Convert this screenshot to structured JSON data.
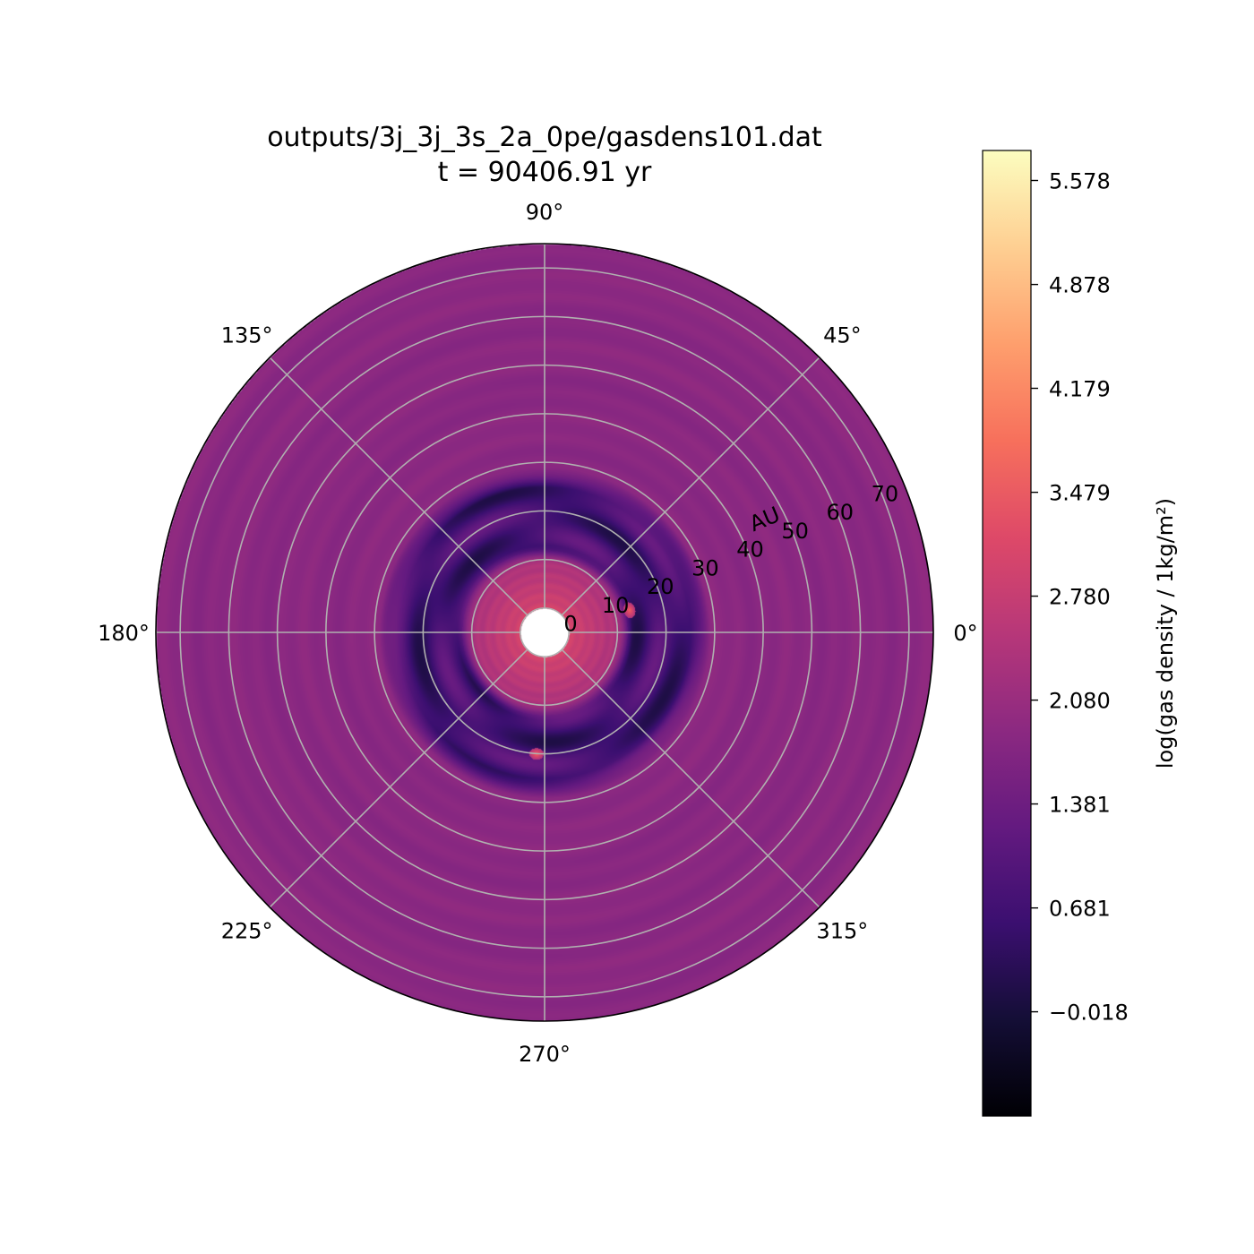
{
  "chart_data": {
    "type": "heatmap",
    "projection": "polar",
    "title_line1": "outputs/3j_3j_3s_2a_0pe/gasdens101.dat",
    "title_line2": "t = 90406.91 yr",
    "theta_ticks": [
      "0°",
      "45°",
      "90°",
      "135°",
      "180°",
      "225°",
      "270°",
      "315°"
    ],
    "theta_tick_values_deg": [
      0,
      45,
      90,
      135,
      180,
      225,
      270,
      315
    ],
    "r_label": "AU",
    "r_ticks": [
      "0",
      "10",
      "20",
      "30",
      "40",
      "50",
      "60",
      "70"
    ],
    "r_tick_values": [
      0,
      10,
      20,
      30,
      40,
      50,
      60,
      70
    ],
    "r_range": [
      -5,
      75
    ],
    "grid": true,
    "colormap": "magma",
    "colorbar": {
      "label": "log(gas density / 1kg/m²)",
      "ticks": [
        "−0.018",
        "0.681",
        "1.381",
        "2.080",
        "2.780",
        "3.479",
        "4.179",
        "4.878",
        "5.578"
      ],
      "tick_values": [
        -0.018,
        0.681,
        1.381,
        2.08,
        2.78,
        3.479,
        4.179,
        4.878,
        5.578
      ],
      "range": [
        -0.72,
        5.78
      ]
    },
    "field": {
      "background_log_density": 1.85,
      "inner_disk_peak": 3.0,
      "gap_inner_radius_au": 12,
      "gap_outer_radius_au": 25,
      "gap_min_log_density": 0.2,
      "planets": [
        {
          "r_au": 13,
          "theta_deg": 15,
          "log_density": 3.6
        },
        {
          "r_au": 20,
          "theta_deg": 266,
          "log_density": 3.6
        }
      ]
    }
  }
}
